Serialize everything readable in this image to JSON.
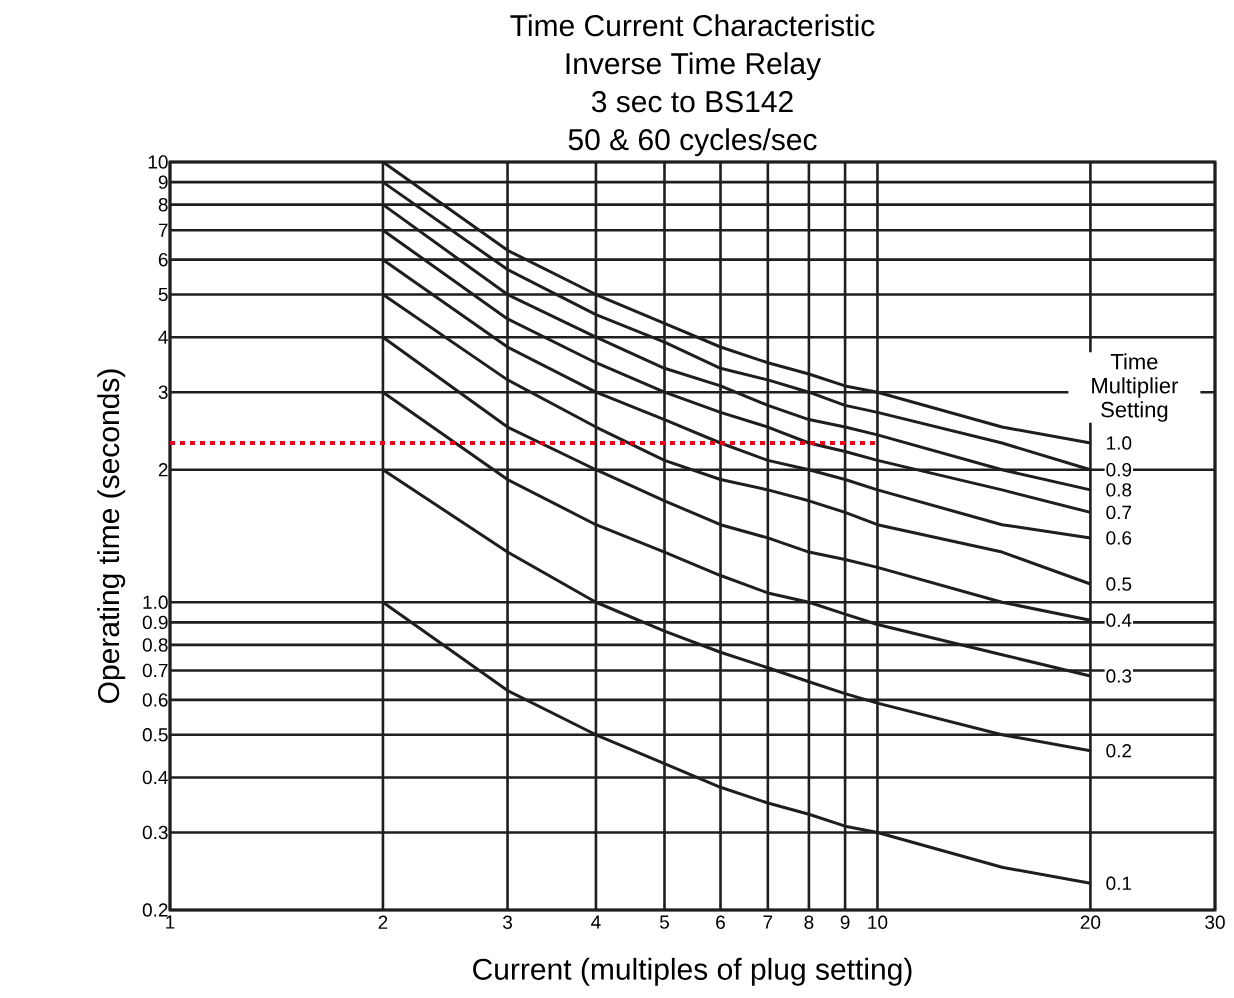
{
  "chart_data": {
    "type": "line",
    "title": "Time Current Characteristic",
    "subtitle": "Inverse Time Relay",
    "annotations": [
      "3 sec to BS142",
      "50 & 60 cycles/sec"
    ],
    "xlabel": "Current (multiples of plug setting)",
    "ylabel": "Operating time (seconds)",
    "legend_title": "Time Multiplier Setting",
    "log": "xy",
    "grid": true,
    "xlim": [
      1,
      30
    ],
    "ylim": [
      0.2,
      10
    ],
    "xticks": [
      1,
      2,
      3,
      4,
      5,
      6,
      7,
      8,
      9,
      10,
      20,
      30
    ],
    "yticks": [
      0.2,
      0.3,
      0.4,
      0.5,
      0.6,
      0.7,
      0.8,
      0.9,
      {
        "value": 1,
        "label": "1.0"
      },
      2,
      3,
      4,
      5,
      6,
      7,
      8,
      9,
      10
    ],
    "x": [
      2,
      3,
      4,
      5,
      6,
      7,
      8,
      9,
      10,
      15,
      20
    ],
    "series": [
      {
        "name": "1.0",
        "color": "#1e1e1e",
        "values": [
          10,
          6.3,
          5.0,
          4.3,
          3.8,
          3.5,
          3.3,
          3.1,
          3.0,
          2.5,
          2.3
        ]
      },
      {
        "name": "0.9",
        "color": "#1e1e1e",
        "values": [
          9.0,
          5.7,
          4.5,
          3.9,
          3.4,
          3.2,
          3.0,
          2.8,
          2.7,
          2.3,
          2.0
        ]
      },
      {
        "name": "0.8",
        "color": "#1e1e1e",
        "values": [
          8.0,
          5.0,
          4.0,
          3.4,
          3.1,
          2.8,
          2.6,
          2.5,
          2.4,
          2.0,
          1.8
        ]
      },
      {
        "name": "0.7",
        "color": "#1e1e1e",
        "values": [
          7.0,
          4.4,
          3.5,
          3.0,
          2.7,
          2.5,
          2.3,
          2.2,
          2.1,
          1.8,
          1.6
        ]
      },
      {
        "name": "0.6",
        "color": "#1e1e1e",
        "values": [
          6.0,
          3.8,
          3.0,
          2.6,
          2.3,
          2.1,
          2.0,
          1.9,
          1.8,
          1.5,
          1.4
        ]
      },
      {
        "name": "0.5",
        "color": "#1e1e1e",
        "values": [
          5.0,
          3.2,
          2.5,
          2.1,
          1.9,
          1.8,
          1.7,
          1.6,
          1.5,
          1.3,
          1.1
        ]
      },
      {
        "name": "0.4",
        "color": "#1e1e1e",
        "values": [
          4.0,
          2.5,
          2.0,
          1.7,
          1.5,
          1.4,
          1.3,
          1.25,
          1.2,
          1.0,
          0.91
        ]
      },
      {
        "name": "0.3",
        "color": "#1e1e1e",
        "values": [
          3.0,
          1.9,
          1.5,
          1.3,
          1.15,
          1.05,
          1.0,
          0.94,
          0.89,
          0.76,
          0.68
        ]
      },
      {
        "name": "0.2",
        "color": "#1e1e1e",
        "values": [
          2.0,
          1.3,
          1.0,
          0.86,
          0.77,
          0.71,
          0.66,
          0.62,
          0.59,
          0.5,
          0.46
        ]
      },
      {
        "name": "0.1",
        "color": "#1e1e1e",
        "values": [
          1.0,
          0.63,
          0.5,
          0.43,
          0.38,
          0.35,
          0.33,
          0.31,
          0.3,
          0.25,
          0.23
        ]
      }
    ],
    "ref_lines": [
      {
        "axis": "y",
        "value": 2.3,
        "color": "#e8001c",
        "line_style": "dotted"
      }
    ]
  }
}
